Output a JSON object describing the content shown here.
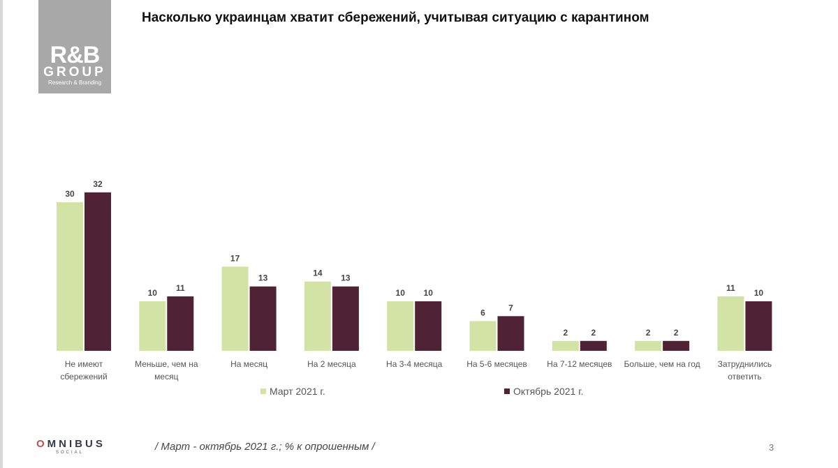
{
  "title": "Насколько украинцам хватит сбережений, учитывая ситуацию с карантином",
  "logo": {
    "main": "R&B",
    "group": "GROUP",
    "sub": "Research & Branding"
  },
  "footer": {
    "brand": "OMNIBUS",
    "brand_sub": "SOCIAL",
    "note": "/ Март - октябрь 2021 г.; % к опрошенным /",
    "page": "3"
  },
  "chart_data": {
    "type": "bar",
    "categories": [
      [
        "Не имеют",
        "сбережений"
      ],
      [
        "Меньше, чем на",
        "месяц"
      ],
      [
        "На месяц"
      ],
      [
        "На 2 месяца"
      ],
      [
        "На 3-4 месяца"
      ],
      [
        "На 5-6 месяцев"
      ],
      [
        "На 7-12 месяцев"
      ],
      [
        "Больше, чем на год"
      ],
      [
        "Затруднились",
        "ответить"
      ]
    ],
    "series": [
      {
        "name": "Март 2021 г.",
        "color": "#d3e3a5",
        "values": [
          30,
          10,
          17,
          14,
          10,
          6,
          2,
          2,
          11
        ]
      },
      {
        "name": "Октябрь 2021 г.",
        "color": "#4f2234",
        "values": [
          32,
          11,
          13,
          13,
          10,
          7,
          2,
          2,
          10
        ]
      }
    ],
    "legend": "bottom",
    "grid": false,
    "ylim": [
      0,
      32
    ]
  }
}
